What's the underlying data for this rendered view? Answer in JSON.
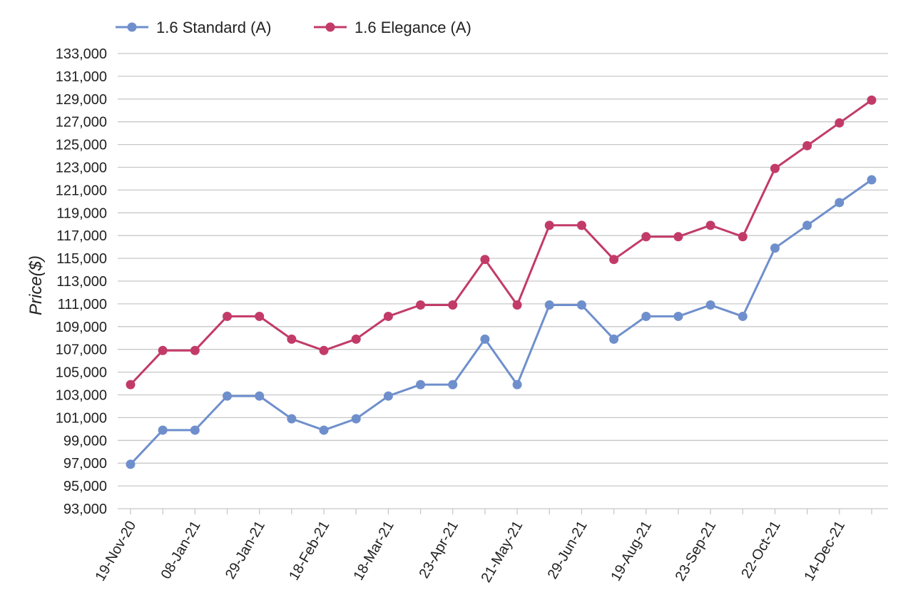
{
  "chart_data": {
    "type": "line",
    "title": "",
    "xlabel": "",
    "ylabel": "Price($)",
    "ylim": [
      93000,
      133000
    ],
    "yticks": [
      93000,
      95000,
      97000,
      99000,
      101000,
      103000,
      105000,
      107000,
      109000,
      111000,
      113000,
      115000,
      117000,
      119000,
      121000,
      123000,
      125000,
      127000,
      129000,
      131000,
      133000
    ],
    "ytick_labels": [
      "93,000",
      "95,000",
      "97,000",
      "99,000",
      "101,000",
      "103,000",
      "105,000",
      "107,000",
      "109,000",
      "111,000",
      "113,000",
      "115,000",
      "117,000",
      "119,000",
      "121,000",
      "123,000",
      "125,000",
      "127,000",
      "129,000",
      "131,000",
      "133,000"
    ],
    "grid": "horizontal",
    "legend_position": "top-left",
    "point_count": 24,
    "xtick_labels": [
      {
        "index": 0,
        "label": "19-Nov-20"
      },
      {
        "index": 2,
        "label": "08-Jan-21"
      },
      {
        "index": 4,
        "label": "29-Jan-21"
      },
      {
        "index": 6,
        "label": "18-Feb-21"
      },
      {
        "index": 8,
        "label": "18-Mar-21"
      },
      {
        "index": 10,
        "label": "23-Apr-21"
      },
      {
        "index": 12,
        "label": "21-May-21"
      },
      {
        "index": 14,
        "label": "29-Jun-21"
      },
      {
        "index": 16,
        "label": "19-Aug-21"
      },
      {
        "index": 18,
        "label": "23-Sep-21"
      },
      {
        "index": 20,
        "label": "22-Oct-21"
      },
      {
        "index": 22,
        "label": "14-Dec-21"
      }
    ],
    "series": [
      {
        "name": "1.6 Standard (A)",
        "color": "#6f8fcc",
        "values": [
          96900,
          99900,
          99900,
          102900,
          102900,
          100900,
          99900,
          100900,
          102900,
          103900,
          103900,
          107900,
          103900,
          110900,
          110900,
          107900,
          109900,
          109900,
          110900,
          109900,
          115900,
          117900,
          119900,
          121900
        ]
      },
      {
        "name": "1.6 Elegance (A)",
        "color": "#c23b68",
        "values": [
          103900,
          106900,
          106900,
          109900,
          109900,
          107900,
          106900,
          107900,
          109900,
          110900,
          110900,
          114900,
          110900,
          117900,
          117900,
          114900,
          116900,
          116900,
          117900,
          116900,
          122900,
          124900,
          126900,
          128900
        ]
      }
    ]
  }
}
